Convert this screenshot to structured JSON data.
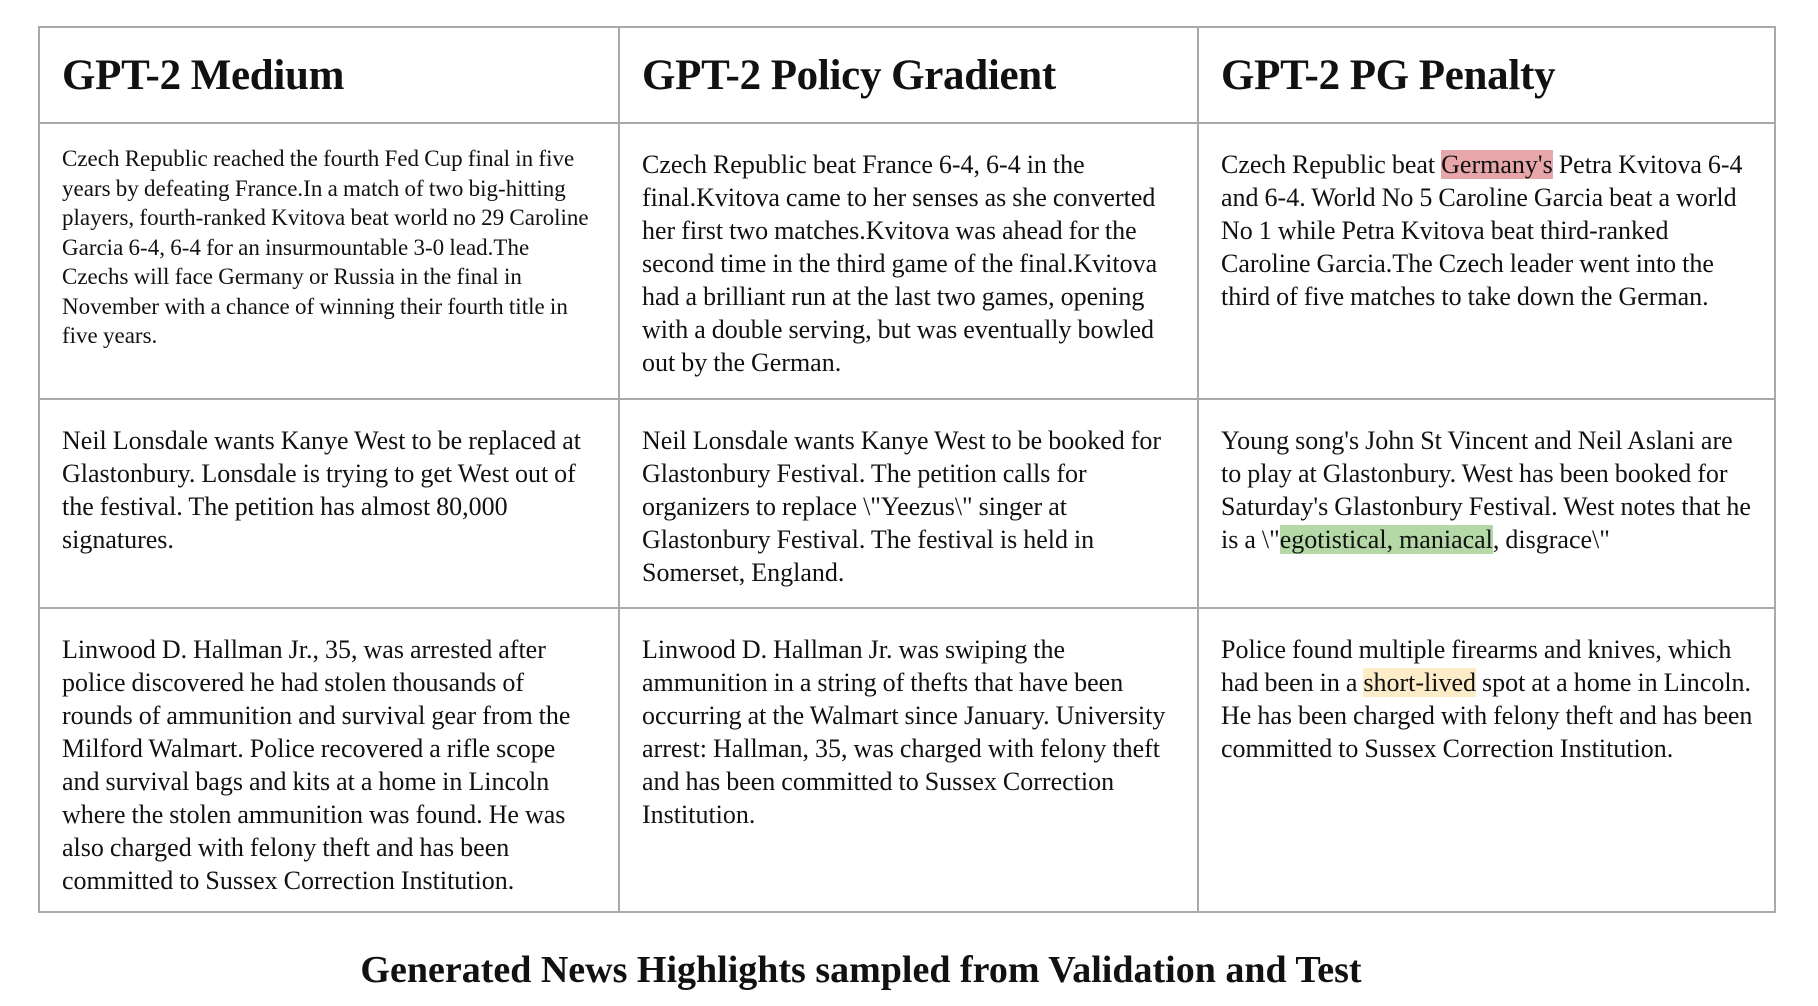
{
  "table": {
    "headers": [
      "GPT-2 Medium",
      "GPT-2 Policy Gradient",
      "GPT-2 PG Penalty"
    ],
    "rows": [
      {
        "medium": "Czech Republic reached the fourth Fed Cup final in five years by defeating France.In a match of two big-hitting players, fourth-ranked Kvitova beat world no 29 Caroline Garcia 6-4, 6-4 for an insurmountable 3-0 lead.The Czechs will face Germany or Russia in the final in November with a chance of winning their fourth title in five years.",
        "policy_gradient": "Czech Republic beat France 6-4, 6-4 in the final.Kvitova came to her senses as she converted her first two matches.Kvitova was ahead for the second time in the third game of the final.Kvitova had a brilliant run at the last two games, opening with a double serving, but was eventually bowled out by the German.",
        "pg_penalty": {
          "before": "Czech Republic beat ",
          "highlight": "Germany's",
          "after": " Petra Kvitova 6-4 and 6-4. World No 5 Caroline Garcia beat a world No 1 while Petra Kvitova beat third-ranked Caroline Garcia.The Czech leader went into the third of five matches to take down the German."
        }
      },
      {
        "medium": "Neil Lonsdale wants Kanye West to be replaced at Glastonbury. Lonsdale is trying to get West out of the festival. The petition has almost 80,000 signatures.",
        "policy_gradient": " Neil Lonsdale wants Kanye West to be booked for Glastonbury Festival. The petition calls for organizers to replace \\\"Yeezus\\\" singer at Glastonbury Festival. The festival is held in Somerset, England.",
        "pg_penalty": {
          "before": "Young song's John St Vincent and Neil Aslani are to play at Glastonbury. West has been booked for Saturday's Glastonbury Festival. West notes that he is a \\\"",
          "highlight": "egotistical, maniacal",
          "after": ", disgrace\\\""
        }
      },
      {
        "medium": "Linwood D. Hallman Jr., 35, was arrested after police discovered he had stolen thousands of rounds of ammunition and survival gear from the Milford Walmart. Police recovered a rifle scope and survival bags and kits at a home in Lincoln where the stolen ammunition was found. He was also charged with felony theft and has been committed to Sussex Correction Institution.",
        "policy_gradient": " Linwood D. Hallman Jr. was swiping the ammunition in a string of thefts that have been occurring at the Walmart since January. University arrest: Hallman, 35, was charged with felony theft and has been committed to Sussex Correction Institution.",
        "pg_penalty": {
          "before": "Police found multiple firearms and knives, which had been in a ",
          "highlight": "short-lived",
          "after": " spot at a home in Lincoln. He has been charged with felony theft and has been committed to Sussex Correction Institution."
        }
      }
    ]
  },
  "caption": "Generated News Highlights sampled from Validation and Test",
  "colors": {
    "border": "#a9a9a9",
    "highlight_red": "#e7a6a9",
    "highlight_green": "#b5d8a7",
    "highlight_yellow": "#fdecc8"
  }
}
